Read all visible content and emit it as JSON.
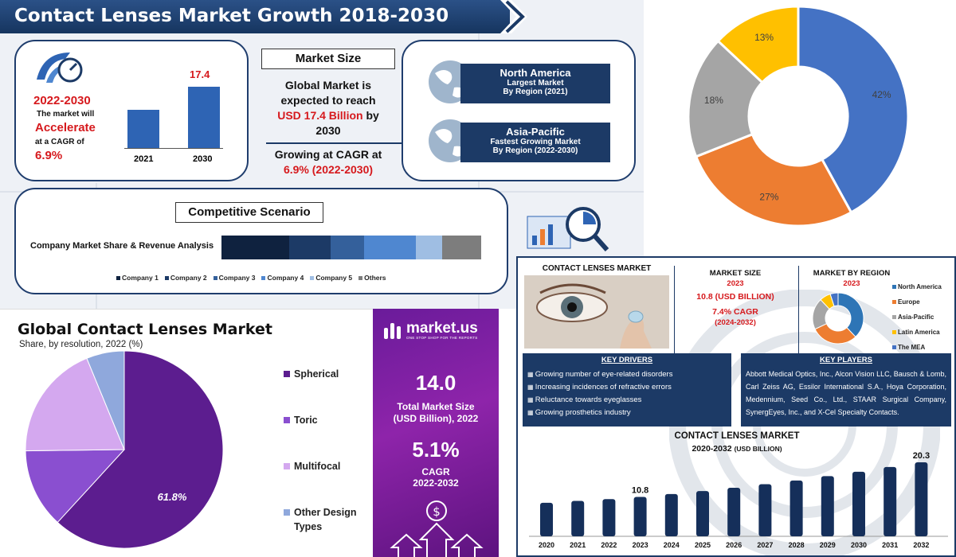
{
  "panel1": {
    "title": "Contact Lenses Market Growth 2018-2030",
    "accelerate": {
      "period": "2022-2030",
      "line1": "The market will",
      "accelerate": "Accelerate",
      "line2": "at a CAGR of",
      "cagr": "6.9%"
    },
    "mini_bar": {
      "categories": [
        "2021",
        "2030"
      ],
      "values": [
        10.8,
        17.4
      ],
      "label": "17.4"
    },
    "market_size": {
      "heading": "Market Size",
      "line1": "Global Market is",
      "line2": "expected to reach",
      "value": "USD 17.4 Billion",
      "by": "by",
      "year": "2030",
      "growing": "Growing at CAGR at",
      "cagr": "6.9% (2022-2030)"
    },
    "regions": [
      {
        "name": "North America",
        "line1": "Largest Market",
        "line2": "By Region (2021)"
      },
      {
        "name": "Asia-Pacific",
        "line1": "Fastest Growing Market",
        "line2": "By Region (2022-2030)"
      }
    ],
    "competitive": {
      "heading": "Competitive Scenario",
      "label": "Company Market Share & Revenue Analysis",
      "segments": [
        {
          "name": "Company 1",
          "share": 26,
          "color": "#0f223f"
        },
        {
          "name": "Company 2",
          "share": 16,
          "color": "#1c3a66"
        },
        {
          "name": "Company 3",
          "share": 13,
          "color": "#34609b"
        },
        {
          "name": "Company 4",
          "share": 20,
          "color": "#4f87d0"
        },
        {
          "name": "Company 5",
          "share": 10,
          "color": "#9fbee3"
        },
        {
          "name": "Others",
          "share": 15,
          "color": "#7d7d7d"
        }
      ]
    }
  },
  "chart_data": [
    {
      "type": "pie",
      "title": "",
      "donut": true,
      "labels": [
        "42%",
        "27%",
        "18%",
        "13%"
      ],
      "values": [
        42,
        27,
        18,
        13
      ],
      "colors": [
        "#4472c4",
        "#ed7d31",
        "#a5a5a5",
        "#ffc000"
      ]
    },
    {
      "type": "pie",
      "title": "Global Contact Lenses Market",
      "subtitle": "Share, by resolution, 2022 (%)",
      "categories": [
        "Spherical",
        "Toric",
        "Multifocal",
        "Other Design Types"
      ],
      "values": [
        61.8,
        13.0,
        19.0,
        6.2
      ],
      "colors": [
        "#5c1d8f",
        "#8a4fd0",
        "#d4a8ef",
        "#8fa8dc"
      ],
      "data_label": "61.8%"
    },
    {
      "type": "bar",
      "title": "CONTACT LENSES MARKET",
      "subtitle": "2020-2032 (USD BILLION)",
      "categories": [
        "2020",
        "2021",
        "2022",
        "2023",
        "2024",
        "2025",
        "2026",
        "2027",
        "2028",
        "2029",
        "2030",
        "2031",
        "2032"
      ],
      "values": [
        9.2,
        9.7,
        10.2,
        10.8,
        11.6,
        12.4,
        13.3,
        14.3,
        15.3,
        16.5,
        17.7,
        19.0,
        20.3
      ],
      "data_labels": {
        "3": "10.8",
        "12": "20.3"
      },
      "ylim": [
        0,
        24
      ]
    },
    {
      "type": "pie",
      "title": "MARKET BY REGION",
      "donut": true,
      "categories": [
        "North America",
        "Europe",
        "Asia-Pacific",
        "Latin America",
        "The MEA"
      ],
      "values": [
        38,
        30,
        20,
        7,
        5
      ],
      "colors": [
        "#2e75b6",
        "#ed7d31",
        "#a5a5a5",
        "#ffc000",
        "#4472c4"
      ]
    }
  ],
  "panel3": {
    "title": "Global Contact Lenses Market",
    "subtitle": "Share, by resolution, 2022 (%)",
    "legend": [
      "Spherical",
      "Toric",
      "Multifocal",
      "Other Design"
    ],
    "legend_extra": "Types",
    "data_label": "61.8%"
  },
  "panel4": {
    "brand": "market.us",
    "tagline": "ONE STOP SHOP FOR THE REPORTS",
    "size_value": "14.0",
    "size_label1": "Total Market Size",
    "size_label2": "(USD Billion), 2022",
    "cagr_value": "5.1%",
    "cagr_label": "CAGR",
    "cagr_period": "2022-2032"
  },
  "panel5": {
    "header_title": "CONTACT LENSES MARKET",
    "market_size": {
      "heading": "MARKET SIZE",
      "year": "2023",
      "value": "10.8 (USD BILLION)",
      "cagr": "7.4% CAGR",
      "period": "(2024-2032)"
    },
    "region": {
      "heading": "MARKET BY REGION",
      "year": "2023",
      "legend": [
        "North America",
        "Europe",
        "Asia-Pacific",
        "Latin America",
        "The MEA"
      ]
    },
    "drivers": {
      "heading": "KEY DRIVERS",
      "items": [
        "Growing number of eye-related disorders",
        "Increasing incidences of refractive errors",
        "Reluctance towards eyeglasses",
        "Growing prosthetics industry"
      ]
    },
    "players": {
      "heading": "KEY PLAYERS",
      "text": "Abbott Medical Optics, Inc., Alcon Vision LLC, Bausch & Lomb, Carl Zeiss AG, Essilor International S.A., Hoya Corporation, Medennium, Seed Co., Ltd., STAAR Surgical Company, SynergEyes, Inc., and X-Cel Specialty Contacts."
    },
    "chart_title": "CONTACT LENSES MARKET",
    "chart_sub1": "2020-2032",
    "chart_sub2": "(USD BILLION)"
  },
  "colors": {
    "navy": "#1c3a66",
    "red": "#d6191d",
    "purple": "#6a1b9a"
  }
}
